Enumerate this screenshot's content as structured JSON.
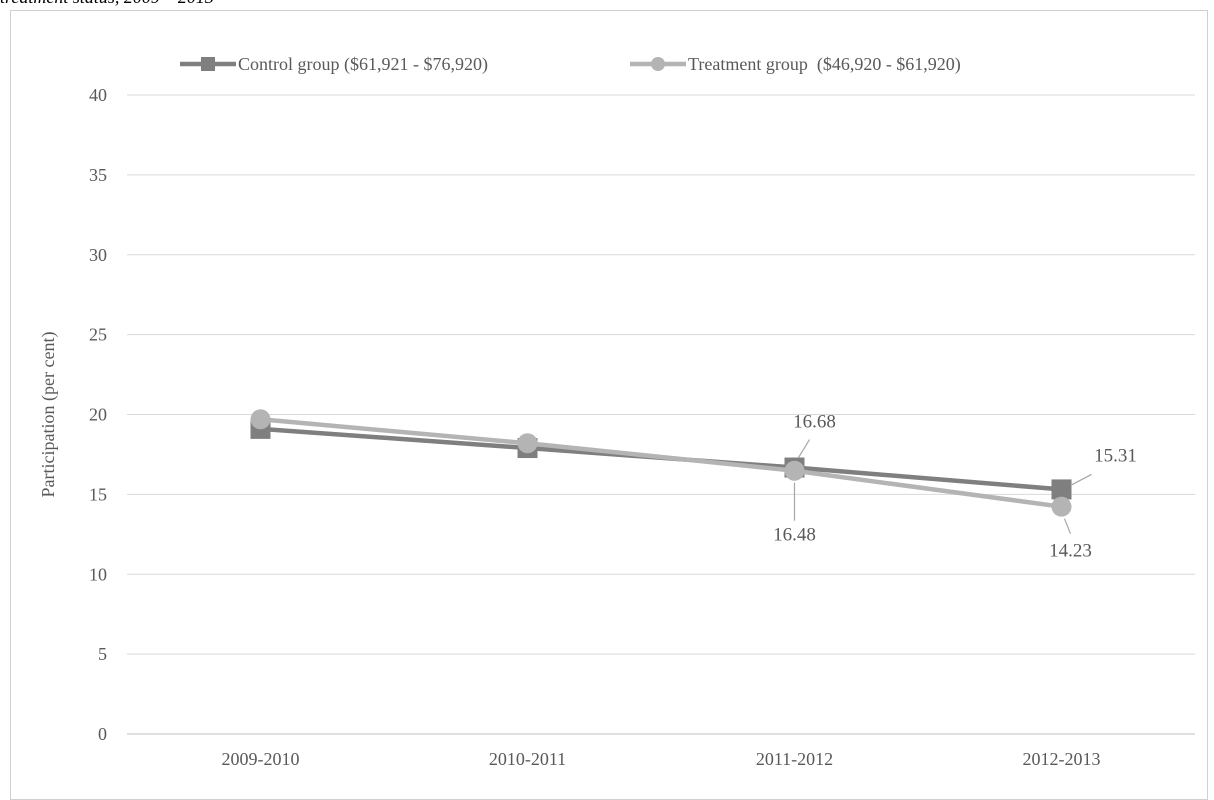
{
  "caption_fragment": "treatment status, 2009 – 2013",
  "chart_data": {
    "type": "line",
    "categories": [
      "2009-2010",
      "2010-2011",
      "2011-2012",
      "2012-2013"
    ],
    "series": [
      {
        "name": "Control group ($61,921 - $76,920)",
        "values": [
          19.1,
          17.9,
          16.68,
          15.31
        ],
        "color": "#7f7f7f",
        "marker": "square"
      },
      {
        "name": "Treatment group  ($46,920 - $61,920)",
        "values": [
          19.7,
          18.2,
          16.48,
          14.23
        ],
        "color": "#b4b4b4",
        "marker": "circle"
      }
    ],
    "data_labels": [
      {
        "series": 0,
        "index": 2,
        "text": "16.68"
      },
      {
        "series": 0,
        "index": 3,
        "text": "15.31"
      },
      {
        "series": 1,
        "index": 2,
        "text": "16.48"
      },
      {
        "series": 1,
        "index": 3,
        "text": "14.23"
      }
    ],
    "ylabel": "Participation (per cent)",
    "xlabel": "",
    "ylim": [
      0,
      40
    ],
    "yticks": [
      0,
      5,
      10,
      15,
      20,
      25,
      30,
      35,
      40
    ],
    "grid": true,
    "legend_position": "top"
  }
}
